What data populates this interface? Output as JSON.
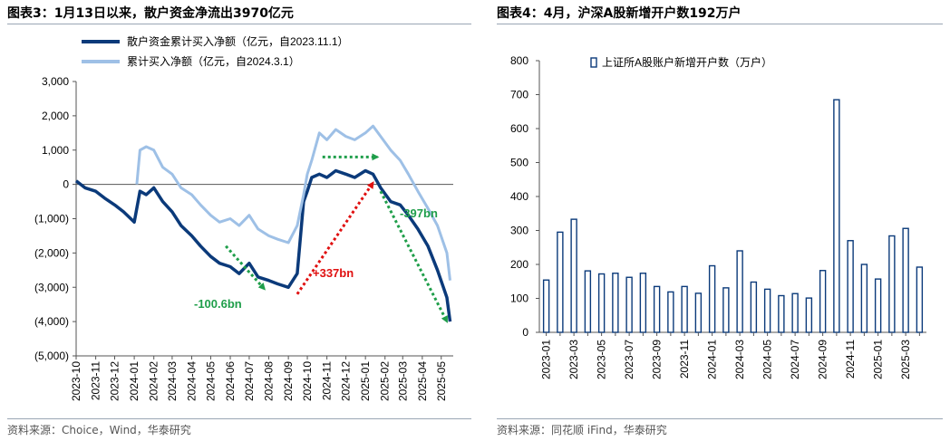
{
  "left": {
    "title": "图表3：1月13日以来，散户资金净流出3970亿元",
    "source": "资料来源：Choice，Wind，华泰研究"
  },
  "right": {
    "title": "图表4：4月，沪深A股新增开户数192万户",
    "source": "资料来源：同花顺 iFind，华泰研究"
  },
  "chart_data": [
    {
      "type": "line",
      "ylim": [
        -5000,
        3000
      ],
      "y_ticks": [
        "3,000",
        "2,000",
        "1,000",
        "0",
        "(1,000)",
        "(2,000)",
        "(3,000)",
        "(4,000)",
        "(5,000)"
      ],
      "x_tick_labels": [
        "2023-10",
        "2023-11",
        "2023-12",
        "2024-01",
        "2024-02",
        "2024-03",
        "2024-04",
        "2024-05",
        "2024-06",
        "2024-07",
        "2024-08",
        "2024-09",
        "2024-10",
        "2024-11",
        "2024-12",
        "2025-01",
        "2025-02",
        "2025-03",
        "2025-04",
        "2025-05"
      ],
      "series": [
        {
          "name": "散户资金累计买入净额（亿元，自2023.11.1）",
          "color": "#0b3a7a",
          "x": [
            "2023-10-01",
            "2023-10-15",
            "2023-11-01",
            "2023-11-15",
            "2023-12-01",
            "2023-12-15",
            "2024-01-01",
            "2024-01-10",
            "2024-01-20",
            "2024-02-01",
            "2024-02-15",
            "2024-03-01",
            "2024-03-15",
            "2024-04-01",
            "2024-04-15",
            "2024-05-01",
            "2024-05-15",
            "2024-06-01",
            "2024-06-15",
            "2024-07-01",
            "2024-07-15",
            "2024-08-01",
            "2024-08-15",
            "2024-09-01",
            "2024-09-15",
            "2024-09-25",
            "2024-10-01",
            "2024-10-08",
            "2024-10-20",
            "2024-11-01",
            "2024-11-15",
            "2024-12-01",
            "2024-12-15",
            "2025-01-01",
            "2025-01-13",
            "2025-01-25",
            "2025-02-10",
            "2025-02-25",
            "2025-03-10",
            "2025-03-25",
            "2025-04-10",
            "2025-04-25",
            "2025-05-10",
            "2025-05-15"
          ],
          "values": [
            100,
            -100,
            -200,
            -400,
            -600,
            -800,
            -1100,
            -200,
            -300,
            -100,
            -500,
            -800,
            -1200,
            -1500,
            -1800,
            -2100,
            -2300,
            -2400,
            -2600,
            -2300,
            -2700,
            -2800,
            -2900,
            -3000,
            -2600,
            -500,
            -200,
            200,
            300,
            200,
            400,
            300,
            200,
            400,
            300,
            -100,
            -500,
            -600,
            -900,
            -1300,
            -1800,
            -2500,
            -3300,
            -4000
          ]
        },
        {
          "name": "累计买入净额（亿元，自2024.3.1）",
          "color": "#9ec0e6",
          "x": [
            "2024-01-05",
            "2024-01-10",
            "2024-01-20",
            "2024-02-01",
            "2024-02-15",
            "2024-03-01",
            "2024-03-15",
            "2024-04-01",
            "2024-04-15",
            "2024-05-01",
            "2024-05-15",
            "2024-06-01",
            "2024-06-15",
            "2024-07-01",
            "2024-07-15",
            "2024-08-01",
            "2024-08-15",
            "2024-09-01",
            "2024-09-15",
            "2024-09-25",
            "2024-10-01",
            "2024-10-08",
            "2024-10-20",
            "2024-11-01",
            "2024-11-15",
            "2024-12-01",
            "2024-12-15",
            "2025-01-01",
            "2025-01-13",
            "2025-01-25",
            "2025-02-10",
            "2025-02-25",
            "2025-03-10",
            "2025-03-25",
            "2025-04-10",
            "2025-04-25",
            "2025-05-10",
            "2025-05-15"
          ],
          "values": [
            0,
            1000,
            1100,
            1000,
            500,
            300,
            -100,
            -300,
            -600,
            -900,
            -1100,
            -1000,
            -1200,
            -900,
            -1300,
            -1500,
            -1600,
            -1700,
            -1200,
            -300,
            300,
            700,
            1500,
            1300,
            1600,
            1400,
            1300,
            1500,
            1700,
            1400,
            1000,
            700,
            300,
            -200,
            -700,
            -1200,
            -2000,
            -2800
          ]
        }
      ],
      "annotations": [
        {
          "text": "-100.6bn",
          "color": "#1f9e4a"
        },
        {
          "text": "+337bn",
          "color": "#e01010"
        },
        {
          "text": "-397bn",
          "color": "#1f9e4a"
        }
      ]
    },
    {
      "type": "bar",
      "ylim": [
        0,
        800
      ],
      "y_ticks": [
        "800",
        "700",
        "600",
        "500",
        "400",
        "300",
        "200",
        "100",
        "0"
      ],
      "series": [
        {
          "name": "上证所A股账户新增开户数（万户）",
          "color": "#0b3a7a",
          "values": [
            154,
            295,
            333,
            181,
            172,
            174,
            162,
            174,
            135,
            119,
            135,
            115,
            196,
            131,
            240,
            148,
            127,
            108,
            114,
            101,
            182,
            685,
            270,
            200,
            157,
            284,
            306,
            192
          ]
        }
      ],
      "categories": [
        "2023-01",
        "2023-02",
        "2023-03",
        "2023-04",
        "2023-05",
        "2023-06",
        "2023-07",
        "2023-08",
        "2023-09",
        "2023-10",
        "2023-11",
        "2023-12",
        "2024-01",
        "2024-02",
        "2024-03",
        "2024-04",
        "2024-05",
        "2024-06",
        "2024-07",
        "2024-08",
        "2024-09",
        "2024-10",
        "2024-11",
        "2024-12",
        "2025-01",
        "2025-02",
        "2025-03",
        "2025-04"
      ],
      "x_tick_labels": [
        "2023-01",
        "2023-03",
        "2023-05",
        "2023-07",
        "2023-09",
        "2023-11",
        "2024-01",
        "2024-03",
        "2024-05",
        "2024-07",
        "2024-09",
        "2024-11",
        "2025-01",
        "2025-03"
      ]
    }
  ]
}
